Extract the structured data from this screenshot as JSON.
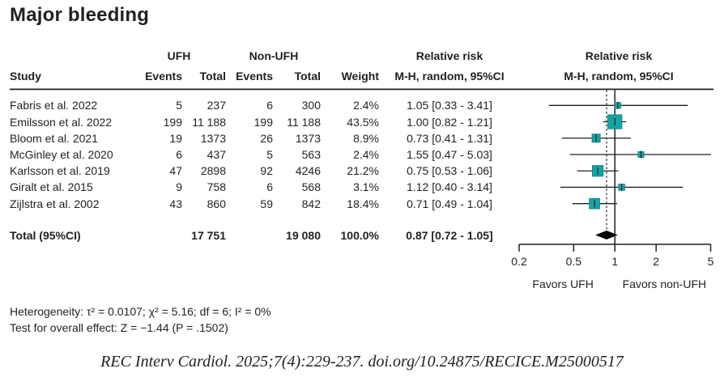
{
  "title": "Major bleeding",
  "headers": {
    "group_ufh": "UFH",
    "group_non_ufh": "Non-UFH",
    "group_rr_text": "Relative risk",
    "group_rr_plot": "Relative risk",
    "col_study": "Study",
    "col_events_1": "Events",
    "col_total_1": "Total",
    "col_events_2": "Events",
    "col_total_2": "Total",
    "col_weight": "Weight",
    "col_mh_1": "M-H, random, 95%CI",
    "col_mh_2": "M-H, random, 95%CI"
  },
  "chart_data": {
    "type": "forest",
    "x_scale": "log",
    "x_range": [
      0.2,
      5
    ],
    "x_ticks": [
      0.2,
      0.5,
      1,
      2,
      5
    ],
    "null_line": 1,
    "favors_left": "Favors UFH",
    "favors_right": "Favors non-UFH",
    "studies": [
      {
        "study": "Fabris et al. 2022",
        "ufh_events": 5,
        "ufh_total": 237,
        "non_ufh_events": 6,
        "non_ufh_total": 300,
        "weight_pct": 2.4,
        "rr": 1.05,
        "ci_low": 0.33,
        "ci_high": 3.41
      },
      {
        "study": "Emilsson et al. 2022",
        "ufh_events": 199,
        "ufh_total": 11188,
        "non_ufh_events": 199,
        "non_ufh_total": 11188,
        "weight_pct": 43.5,
        "rr": 1.0,
        "ci_low": 0.82,
        "ci_high": 1.21
      },
      {
        "study": "Bloom et al. 2021",
        "ufh_events": 19,
        "ufh_total": 1373,
        "non_ufh_events": 26,
        "non_ufh_total": 1373,
        "weight_pct": 8.9,
        "rr": 0.73,
        "ci_low": 0.41,
        "ci_high": 1.31
      },
      {
        "study": "McGinley et al. 2020",
        "ufh_events": 6,
        "ufh_total": 437,
        "non_ufh_events": 5,
        "non_ufh_total": 563,
        "weight_pct": 2.4,
        "rr": 1.55,
        "ci_low": 0.47,
        "ci_high": 5.03
      },
      {
        "study": "Karlsson et al. 2019",
        "ufh_events": 47,
        "ufh_total": 2898,
        "non_ufh_events": 92,
        "non_ufh_total": 4246,
        "weight_pct": 21.2,
        "rr": 0.75,
        "ci_low": 0.53,
        "ci_high": 1.06
      },
      {
        "study": "Giralt et al. 2015",
        "ufh_events": 9,
        "ufh_total": 758,
        "non_ufh_events": 6,
        "non_ufh_total": 568,
        "weight_pct": 3.1,
        "rr": 1.12,
        "ci_low": 0.4,
        "ci_high": 3.14
      },
      {
        "study": "Zijlstra et al. 2002",
        "ufh_events": 43,
        "ufh_total": 860,
        "non_ufh_events": 59,
        "non_ufh_total": 842,
        "weight_pct": 18.4,
        "rr": 0.71,
        "ci_low": 0.49,
        "ci_high": 1.04
      }
    ],
    "total": {
      "label": "Total (95%CI)",
      "ufh_total": 17751,
      "non_ufh_total": 19080,
      "weight_pct": 100.0,
      "rr": 0.87,
      "ci_low": 0.72,
      "ci_high": 1.05
    }
  },
  "footer": {
    "heterogeneity": "Heterogeneity: τ² = 0.0107; χ² = 5.16; df = 6; I² = 0%",
    "overall_effect": "Test for overall effect: Z = −1.44 (P = .1502)",
    "citation": "REC Interv Cardiol. 2025;7(4):229-237. doi.org/10.24875/RECICE.M25000517"
  },
  "colors": {
    "ink": "#231f20",
    "marker_fill": "#16a3a4",
    "marker_stroke": "#0d8b8c",
    "diamond": "#000000"
  }
}
